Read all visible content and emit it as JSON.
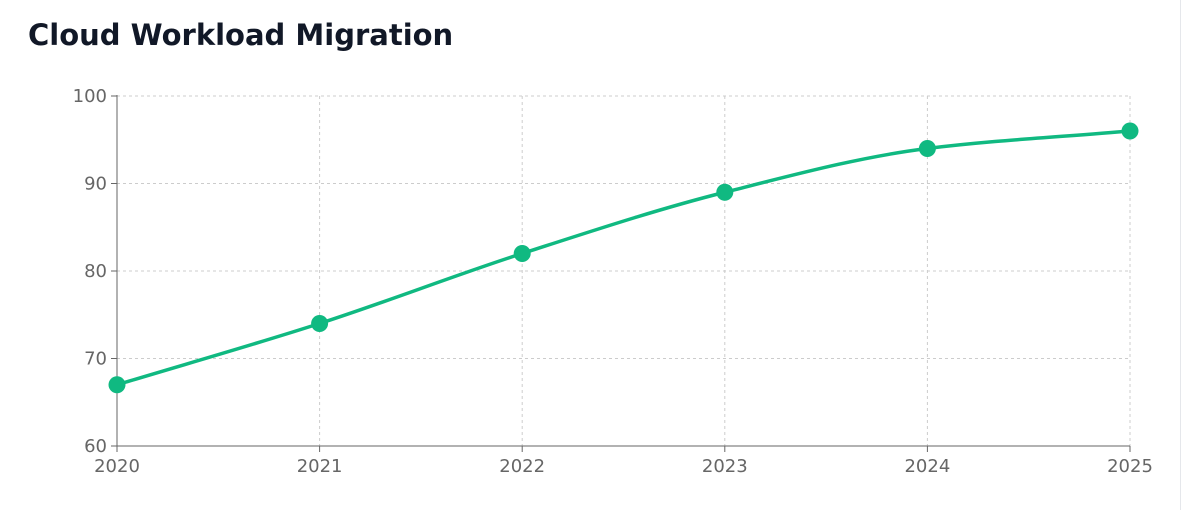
{
  "title": "Cloud Workload Migration",
  "chart_data": {
    "type": "line",
    "title": "Cloud Workload Migration",
    "xlabel": "",
    "ylabel": "",
    "x": [
      "2020",
      "2021",
      "2022",
      "2023",
      "2024",
      "2025"
    ],
    "series": [
      {
        "values": [
          67,
          74,
          82,
          89,
          94,
          96
        ]
      }
    ],
    "ylim": [
      60,
      100
    ],
    "yticks": [
      60,
      70,
      80,
      90,
      100
    ],
    "grid": true,
    "grid_style": "dashed",
    "legend": false,
    "curve": "smooth",
    "markers": true,
    "color": "#10b981"
  }
}
